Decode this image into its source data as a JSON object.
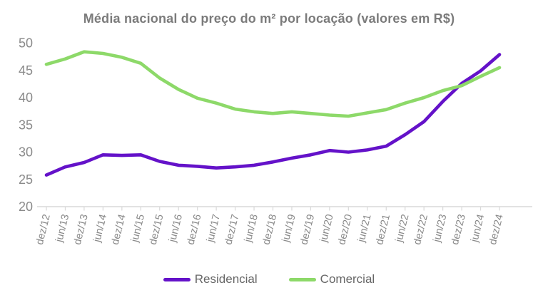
{
  "chart_data": {
    "type": "line",
    "title": "Média nacional do preço do m² por locação (valores em R$)",
    "categories": [
      "dez/12",
      "jun/13",
      "dez/13",
      "jun/14",
      "dez/14",
      "jun/15",
      "dez/15",
      "jun/16",
      "dez/16",
      "jun/17",
      "dez/17",
      "jun/18",
      "dez/18",
      "jun/19",
      "dez/19",
      "jun/20",
      "dez/20",
      "jun/21",
      "dez/21",
      "jun/22",
      "dez/22",
      "jun/23",
      "dez/23",
      "jun/24",
      "dez/24"
    ],
    "series": [
      {
        "name": "Residencial",
        "color": "#6412C9",
        "values": [
          25.8,
          27.3,
          28.1,
          29.5,
          29.4,
          29.5,
          28.3,
          27.6,
          27.4,
          27.1,
          27.3,
          27.6,
          28.2,
          28.9,
          29.5,
          30.3,
          30.0,
          30.4,
          31.1,
          33.2,
          35.6,
          39.3,
          42.6,
          44.9,
          47.9
        ]
      },
      {
        "name": "Comercial",
        "color": "#8DD969",
        "values": [
          46.1,
          47.1,
          48.4,
          48.1,
          47.4,
          46.3,
          43.6,
          41.5,
          39.9,
          39.0,
          37.9,
          37.4,
          37.1,
          37.4,
          37.1,
          36.8,
          36.6,
          37.2,
          37.8,
          39.0,
          40.0,
          41.3,
          42.2,
          43.9,
          45.5
        ]
      }
    ],
    "ylim": [
      20,
      50
    ],
    "y_ticks": [
      50,
      45,
      40,
      35,
      30,
      25,
      20
    ],
    "axis_color": "#D9D9D9",
    "grid": false,
    "x_tick_rotation_deg": -76,
    "legend_position": "bottom"
  }
}
